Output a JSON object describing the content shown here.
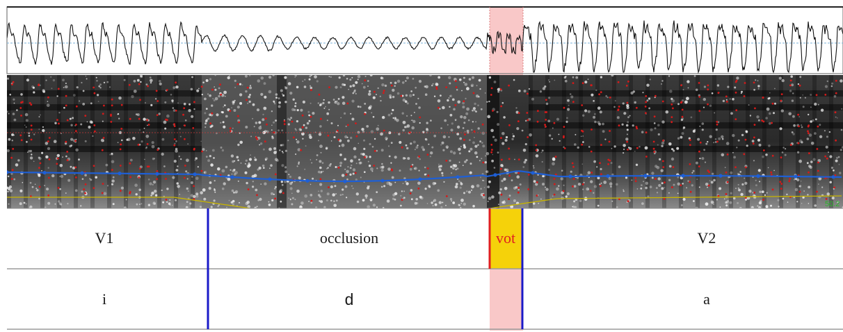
{
  "tiers": {
    "segments": {
      "intervals": [
        {
          "label": "V1"
        },
        {
          "label": "occlusion"
        },
        {
          "label": "vot",
          "highlight": true
        },
        {
          "label": "V2"
        }
      ]
    },
    "phones": {
      "intervals": [
        {
          "label": "i"
        },
        {
          "label": "d"
        },
        {
          "label": "a"
        }
      ]
    }
  },
  "spectrogram": {
    "pitch_readout": "50.2"
  },
  "selection": {
    "target": "vot"
  },
  "colors": {
    "selection": "#f9c8c8",
    "boundary": "#1a1ac8",
    "selected_boundary": "#e02020",
    "selected_interval_fill": "#f5d20a",
    "pitch_track": "#1e5fd6",
    "intensity_track": "#c8b400",
    "formant_dots": "#d41a1a",
    "hz_text": "#27b827"
  }
}
